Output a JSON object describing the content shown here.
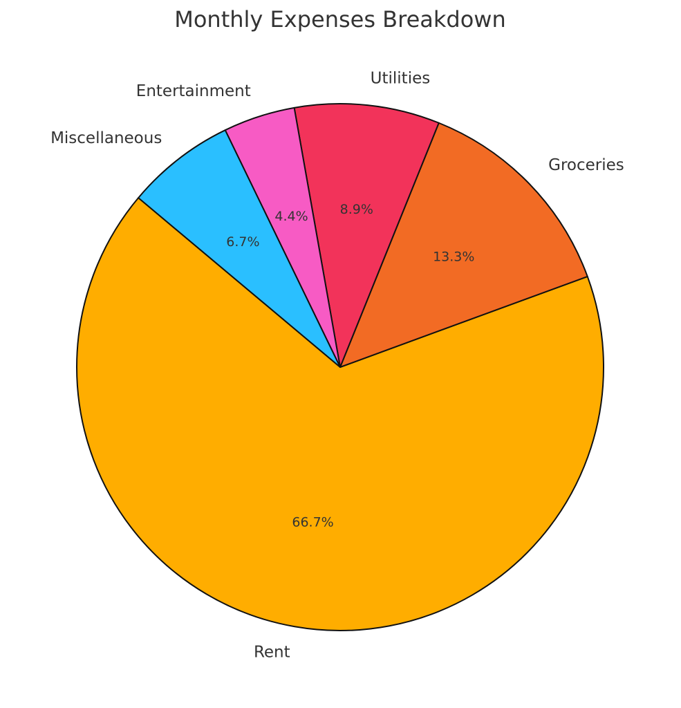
{
  "chart_data": {
    "type": "pie",
    "title": "Monthly Expenses Breakdown",
    "categories": [
      "Rent",
      "Groceries",
      "Utilities",
      "Entertainment",
      "Miscellaneous"
    ],
    "values": [
      66.7,
      13.3,
      8.9,
      4.4,
      6.7
    ],
    "value_labels": [
      "66.7%",
      "13.3%",
      "8.9%",
      "4.4%",
      "6.7%"
    ],
    "colors": [
      "#FFAD00",
      "#F26B24",
      "#F2335A",
      "#F75BC4",
      "#2ABFFF"
    ]
  }
}
